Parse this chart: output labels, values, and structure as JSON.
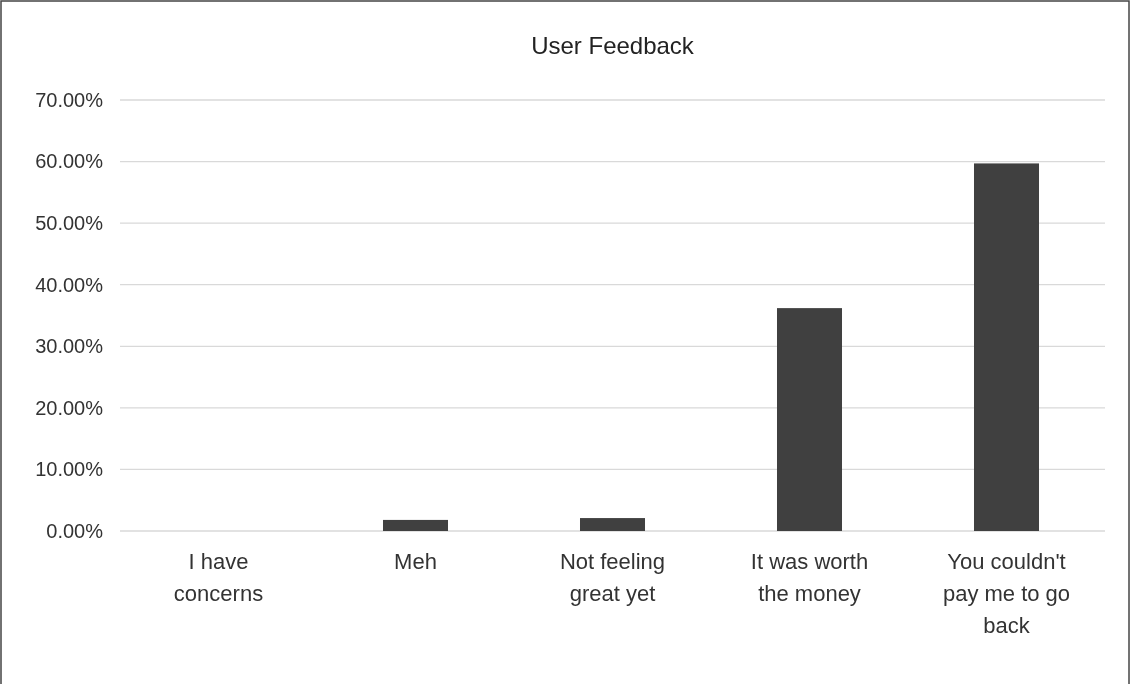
{
  "chart_data": {
    "type": "bar",
    "title": "User Feedback",
    "categories": [
      "I have concerns",
      "Meh",
      "Not feeling great yet",
      "It was worth the money",
      "You couldn't pay me to go back"
    ],
    "values": [
      0,
      1.8,
      2.1,
      36.2,
      59.7
    ],
    "color": "#404040",
    "ylim": [
      0,
      70
    ],
    "yticks": [
      {
        "value": 0,
        "label": "0.00%"
      },
      {
        "value": 10,
        "label": "10.00%"
      },
      {
        "value": 20,
        "label": "20.00%"
      },
      {
        "value": 30,
        "label": "30.00%"
      },
      {
        "value": 40,
        "label": "40.00%"
      },
      {
        "value": 50,
        "label": "50.00%"
      },
      {
        "value": 60,
        "label": "60.00%"
      },
      {
        "value": 70,
        "label": "70.00%"
      }
    ],
    "grid": "y"
  }
}
